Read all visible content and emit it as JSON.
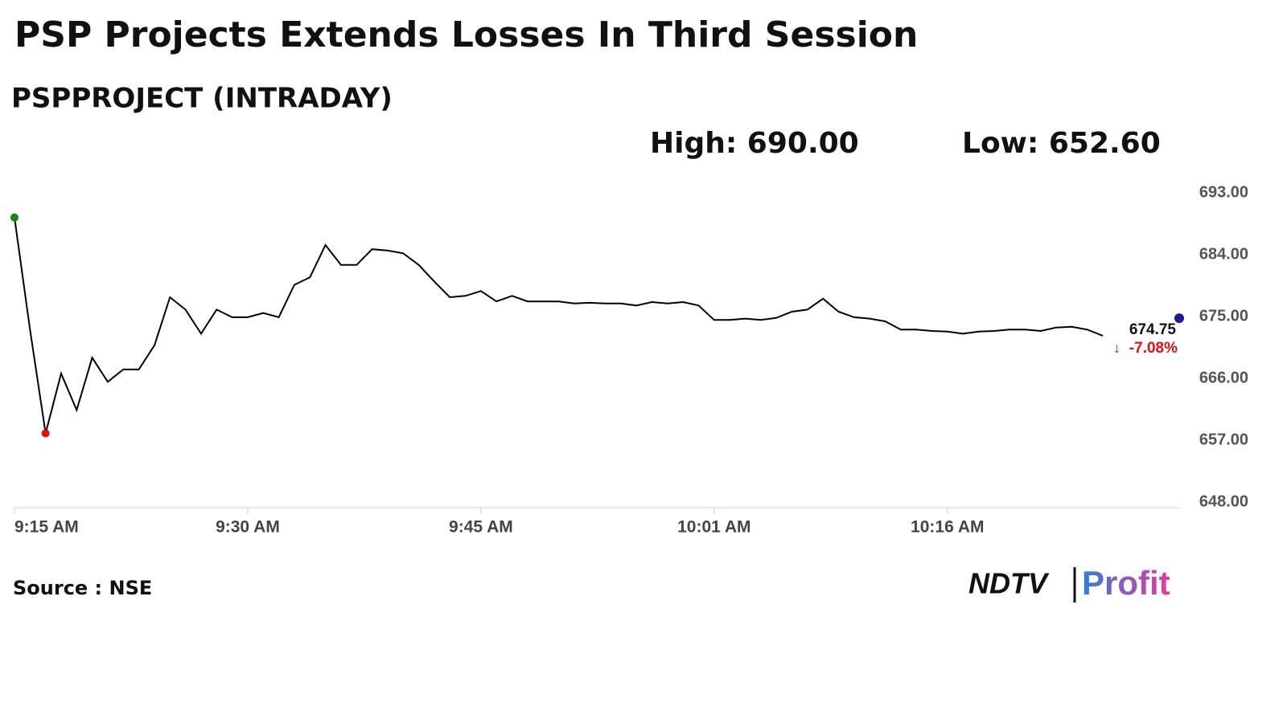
{
  "chart_data": {
    "type": "line",
    "title": "PSP Projects Extends Losses In Third Session",
    "subtitle": "PSPPROJECT (INTRADAY)",
    "annotations": [
      "High: 690.00",
      "Low: 652.60"
    ],
    "categories": [
      "9:15 AM",
      null,
      null,
      null,
      null,
      null,
      null,
      null,
      null,
      null,
      null,
      null,
      null,
      null,
      null,
      "9:30 AM",
      null,
      null,
      null,
      null,
      null,
      null,
      null,
      null,
      null,
      null,
      null,
      null,
      null,
      null,
      "9:45 AM",
      null,
      null,
      null,
      null,
      null,
      null,
      null,
      null,
      null,
      null,
      null,
      null,
      null,
      null,
      "10:01 AM",
      null,
      null,
      null,
      null,
      null,
      null,
      null,
      null,
      null,
      null,
      null,
      null,
      null,
      null,
      "10:16 AM",
      null,
      null,
      null,
      null,
      null,
      null,
      null,
      null,
      null,
      null
    ],
    "values": [
      689.4,
      673.1,
      658,
      666.7,
      661.4,
      669,
      665.5,
      667.3,
      667.3,
      670.8,
      677.8,
      676,
      672.5,
      676,
      674.9,
      674.9,
      675.5,
      674.9,
      679.6,
      680.7,
      685.4,
      682.5,
      682.5,
      684.8,
      684.6,
      684.2,
      682.5,
      680.1,
      677.8,
      678,
      678.7,
      677.2,
      678,
      677.2,
      677.2,
      677.2,
      676.9,
      677,
      676.9,
      676.9,
      676.6,
      677.1,
      676.9,
      677.1,
      676.6,
      674.5,
      674.5,
      674.7,
      674.5,
      674.8,
      675.7,
      676,
      677.6,
      675.7,
      674.9,
      674.7,
      674.3,
      673.1,
      673.1,
      672.9,
      672.8,
      672.5,
      672.8,
      672.9,
      673.1,
      673.1,
      672.9,
      673.4,
      673.5,
      673.1,
      672.2
    ],
    "color": "#000000",
    "ylim": [
      648,
      693
    ],
    "yticks": [
      {
        "value": 648,
        "label": "648.00"
      },
      {
        "value": 657,
        "label": "657.00"
      },
      {
        "value": 666,
        "label": "666.00"
      },
      {
        "value": 675,
        "label": "675.00"
      },
      {
        "value": 684,
        "label": "684.00"
      },
      {
        "value": 693,
        "label": "693.00"
      }
    ],
    "grid": false,
    "last_price": 674.75,
    "change": "-7.08%",
    "source": "Source : NSE",
    "logo": [
      "NDTV",
      "Profit"
    ]
  }
}
